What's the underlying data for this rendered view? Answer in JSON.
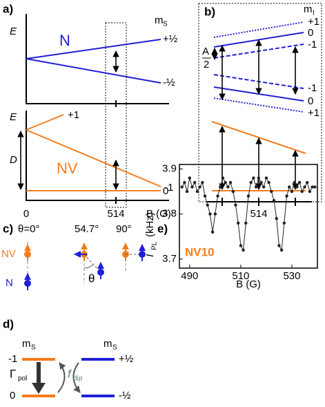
{
  "panel_a": {
    "label": "a)",
    "top": {
      "y_axis": "E",
      "name": "N",
      "spin_label": "m",
      "spin_sub": "S",
      "levels": [
        "+½",
        "-½"
      ]
    },
    "bottom": {
      "y_axis": "E",
      "name": "NV",
      "levels": [
        "+1",
        "-1",
        "0"
      ],
      "splitting": "D"
    },
    "x_ticks": [
      "0",
      "514"
    ],
    "x_axis": "B (G)"
  },
  "panel_b": {
    "label": "b)",
    "spin_label": "m",
    "spin_sub": "I",
    "levels_top": [
      "+1",
      "0",
      "-1"
    ],
    "levels_bottom": [
      "-1",
      "0",
      "+1"
    ],
    "hyperfine_num": "A",
    "hyperfine_den": "2",
    "x_tick": "514"
  },
  "panel_c": {
    "label": "c)",
    "angles": [
      "θ=0°",
      "54.7°",
      "90°"
    ],
    "nv": "NV",
    "n": "N",
    "theta": "θ"
  },
  "panel_d": {
    "label": "d)",
    "spin_label": "m",
    "spin_sub": "S",
    "levels_nv": [
      "-1",
      "0"
    ],
    "levels_n": [
      "+½",
      "-½"
    ],
    "pol": "Γ",
    "pol_sub": "pol",
    "dip": "f",
    "dip_sub": "dip"
  },
  "chart_data": {
    "type": "line",
    "label": "e)",
    "y_label": "I",
    "y_label_sub": "PL",
    "y_label_unit": "(kHz)",
    "x_label": "B (G)",
    "annotation": "NV10",
    "x": [
      487,
      488,
      489,
      490,
      491,
      492,
      493,
      494,
      495,
      496,
      497,
      498,
      499,
      500,
      501,
      502,
      503,
      504,
      505,
      506,
      507,
      508,
      509,
      510,
      511,
      512,
      513,
      514,
      515,
      516,
      517,
      518,
      519,
      520,
      521,
      522,
      523,
      524,
      525,
      526,
      527,
      528,
      529,
      530,
      531,
      532,
      533,
      534,
      535,
      536,
      537,
      538,
      539
    ],
    "series": [
      {
        "color": "#222222",
        "values": [
          3.86,
          3.87,
          3.85,
          3.88,
          3.86,
          3.87,
          3.85,
          3.86,
          3.87,
          3.84,
          3.82,
          3.8,
          3.76,
          3.8,
          3.84,
          3.86,
          3.88,
          3.87,
          3.86,
          3.87,
          3.85,
          3.82,
          3.78,
          3.73,
          3.72,
          3.78,
          3.84,
          3.87,
          3.88,
          3.86,
          3.88,
          3.87,
          3.86,
          3.88,
          3.87,
          3.85,
          3.83,
          3.79,
          3.73,
          3.72,
          3.78,
          3.84,
          3.86,
          3.85,
          3.87,
          3.86,
          3.87,
          3.85,
          3.86,
          3.87,
          3.85,
          3.86,
          3.86
        ]
      }
    ],
    "xlim": [
      486,
      540
    ],
    "ylim": [
      3.68,
      3.91
    ],
    "xticks": [
      490,
      510,
      530
    ],
    "yticks": [
      3.7,
      3.8,
      3.9
    ]
  }
}
